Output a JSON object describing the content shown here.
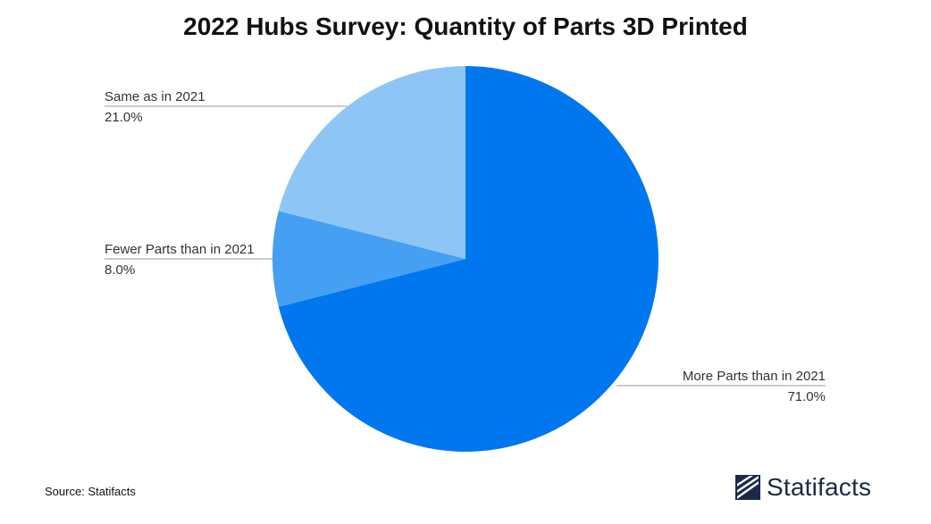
{
  "chart_data": {
    "type": "pie",
    "title": "2022 Hubs Survey: Quantity of Parts 3D Printed",
    "slices": [
      {
        "label": "More Parts than in 2021",
        "value": 71.0,
        "value_label": "71.0%",
        "color": "#0077ee",
        "label_side": "right"
      },
      {
        "label": "Fewer Parts than in 2021",
        "value": 8.0,
        "value_label": "8.0%",
        "color": "#459ff2",
        "label_side": "left"
      },
      {
        "label": "Same as in 2021",
        "value": 21.0,
        "value_label": "21.0%",
        "color": "#8ec5f7",
        "label_side": "left"
      }
    ],
    "start": "12 o'clock",
    "direction": "clockwise"
  },
  "footer": {
    "source": "Source: Statifacts",
    "brand": "Statifacts"
  },
  "colors": {
    "leader_line": "#999999",
    "brand": "#1b2a4a"
  }
}
